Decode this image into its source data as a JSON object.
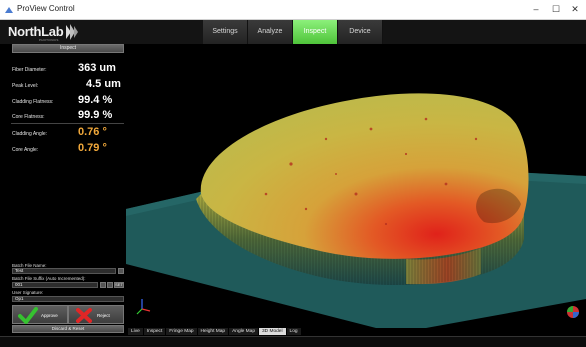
{
  "window": {
    "title": "ProView Control",
    "minimize": "–",
    "maximize": "☐",
    "close": "✕"
  },
  "header": {
    "logo_text": "NorthLab",
    "logo_sub": "PHOTONICS",
    "tabs": [
      {
        "label": "Settings",
        "active": false
      },
      {
        "label": "Analyze",
        "active": false
      },
      {
        "label": "Inspect",
        "active": true
      },
      {
        "label": "Device",
        "active": false
      }
    ],
    "accent_color": "#5ad046"
  },
  "left": {
    "inspect_button": "Inspect",
    "measurements": [
      {
        "label": "Fiber Diameter:",
        "value": "363 um",
        "color": "#ffffff"
      },
      {
        "label": "Peak Level:",
        "value": "4.5 um",
        "color": "#ffffff"
      },
      {
        "label": "Cladding Flatness:",
        "value": "99.4 %",
        "color": "#ffffff"
      },
      {
        "label": "Core Flatness:",
        "value": "99.9 %",
        "color": "#ffffff"
      },
      {
        "label": "Cladding Angle:",
        "value": "0.76 °",
        "color": "#f2a93b"
      },
      {
        "label": "Core Angle:",
        "value": "0.79 °",
        "color": "#f2a93b"
      }
    ],
    "batch_file_name_label": "Batch File Name:",
    "batch_file_name_value": "Test",
    "batch_suffix_label": "Batch File Suffix (Auto Incremented):",
    "batch_suffix_value": "001",
    "suffix_btn_text": "SET",
    "user_signature_label": "User Signature:",
    "user_signature_value": "Op1",
    "approve_label": "Approve",
    "reject_label": "Reject",
    "discard_label": "Discard & Reset"
  },
  "bottom_tabs": [
    {
      "label": "Live",
      "active": false
    },
    {
      "label": "Inspect",
      "active": false
    },
    {
      "label": "Fringe Map",
      "active": false
    },
    {
      "label": "Height Map",
      "active": false
    },
    {
      "label": "Angle Map",
      "active": false
    },
    {
      "label": "3D Model",
      "active": true
    },
    {
      "label": "Log",
      "active": false
    }
  ]
}
